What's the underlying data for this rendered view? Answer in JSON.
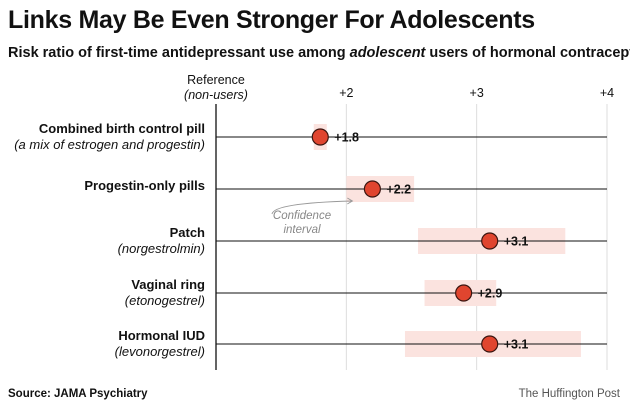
{
  "title": "Links May Be Even Stronger For Adolescents",
  "subtitle": {
    "before": "Risk ratio of first-time antidepressant use among ",
    "emphasis": "adolescent",
    "after": " users of hormonal contraception"
  },
  "footer": {
    "source": "Source: JAMA Psychiatry",
    "publisher": "The Huffington Post"
  },
  "chart_data": {
    "type": "scatter",
    "orientation": "horizontal",
    "reference": {
      "value": 1,
      "label": "Reference",
      "sublabel": "(non-users)"
    },
    "x_ticks": [
      {
        "value": 2,
        "label": "+2"
      },
      {
        "value": 3,
        "label": "+3"
      },
      {
        "value": 4,
        "label": "+4"
      }
    ],
    "xlim": [
      1,
      4
    ],
    "colors": {
      "point": "#e0452f",
      "interval": "#fbe3df",
      "grid": "#dddddd",
      "axis": "#111111"
    },
    "annotation": {
      "lines": [
        "Confidence",
        "interval"
      ],
      "target_index": 1
    },
    "categories": [
      {
        "name": "Combined birth control pill",
        "sub": "(a mix of estrogen and progestin)",
        "value": 1.8,
        "value_label": "+1.8",
        "ci": [
          1.75,
          1.85
        ]
      },
      {
        "name": "Progestin-only pills",
        "sub": "",
        "value": 2.2,
        "value_label": "+2.2",
        "ci": [
          2.0,
          2.52
        ]
      },
      {
        "name": "Patch",
        "sub": "(norgestrolmin)",
        "value": 3.1,
        "value_label": "+3.1",
        "ci": [
          2.55,
          3.68
        ]
      },
      {
        "name": "Vaginal ring",
        "sub": "(etonogestrel)",
        "value": 2.9,
        "value_label": "+2.9",
        "ci": [
          2.6,
          3.15
        ]
      },
      {
        "name": "Hormonal IUD",
        "sub": "(levonorgestrel)",
        "value": 3.1,
        "value_label": "+3.1",
        "ci": [
          2.45,
          3.8
        ]
      }
    ]
  }
}
